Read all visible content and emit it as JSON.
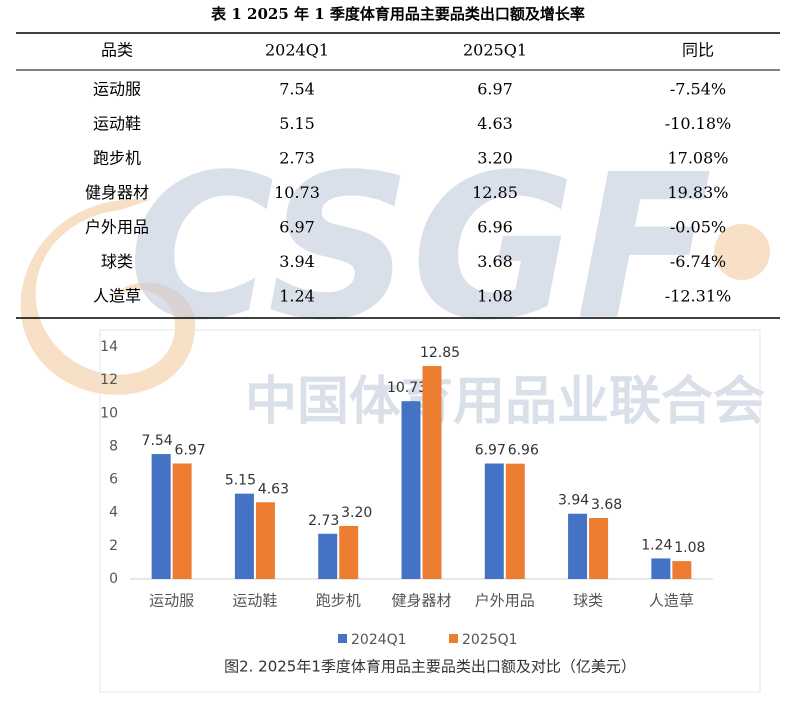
{
  "table": {
    "title": "表 1 2025 年 1 季度体育用品主要品类出口额及增长率",
    "header": [
      "品类",
      "2024Q1",
      "2025Q1",
      "同比"
    ],
    "rows": [
      [
        "运动服",
        "7.54",
        "6.97",
        "-7.54%"
      ],
      [
        "运动鞋",
        "5.15",
        "4.63",
        "-10.18%"
      ],
      [
        "跑步机",
        "2.73",
        "3.20",
        "17.08%"
      ],
      [
        "健身器材",
        "10.73",
        "12.85",
        "19.83%"
      ],
      [
        "户外用品",
        "6.97",
        "6.96",
        "-0.05%"
      ],
      [
        "球类",
        "3.94",
        "3.68",
        "-6.74%"
      ],
      [
        "人造草",
        "1.24",
        "1.08",
        "-12.31%"
      ]
    ]
  },
  "watermark": {
    "logo": "CSGF",
    "text": "中国体育用品业联合会"
  },
  "chart_data": {
    "type": "bar",
    "title": "图2. 2025年1季度体育用品主要品类出口额及对比（亿美元）",
    "categories": [
      "运动服",
      "运动鞋",
      "跑步机",
      "健身器材",
      "户外用品",
      "球类",
      "人造草"
    ],
    "series": [
      {
        "name": "2024Q1",
        "color": "#4472c4",
        "values": [
          7.54,
          5.15,
          2.73,
          10.73,
          6.97,
          3.94,
          1.24
        ],
        "value_labels": [
          "7.54",
          "5.15",
          "2.73",
          "10.73",
          "6.97",
          "3.94",
          "1.24"
        ]
      },
      {
        "name": "2025Q1",
        "color": "#ed7d31",
        "values": [
          6.97,
          4.63,
          3.2,
          12.85,
          6.96,
          3.68,
          1.08
        ],
        "value_labels": [
          "6.97",
          "4.63",
          "3.20",
          "12.85",
          "6.96",
          "3.68",
          "1.08"
        ]
      }
    ],
    "ylim": [
      0,
      14
    ],
    "yticks": [
      0,
      2,
      4,
      6,
      8,
      10,
      12,
      14
    ],
    "legend": "bottom"
  }
}
